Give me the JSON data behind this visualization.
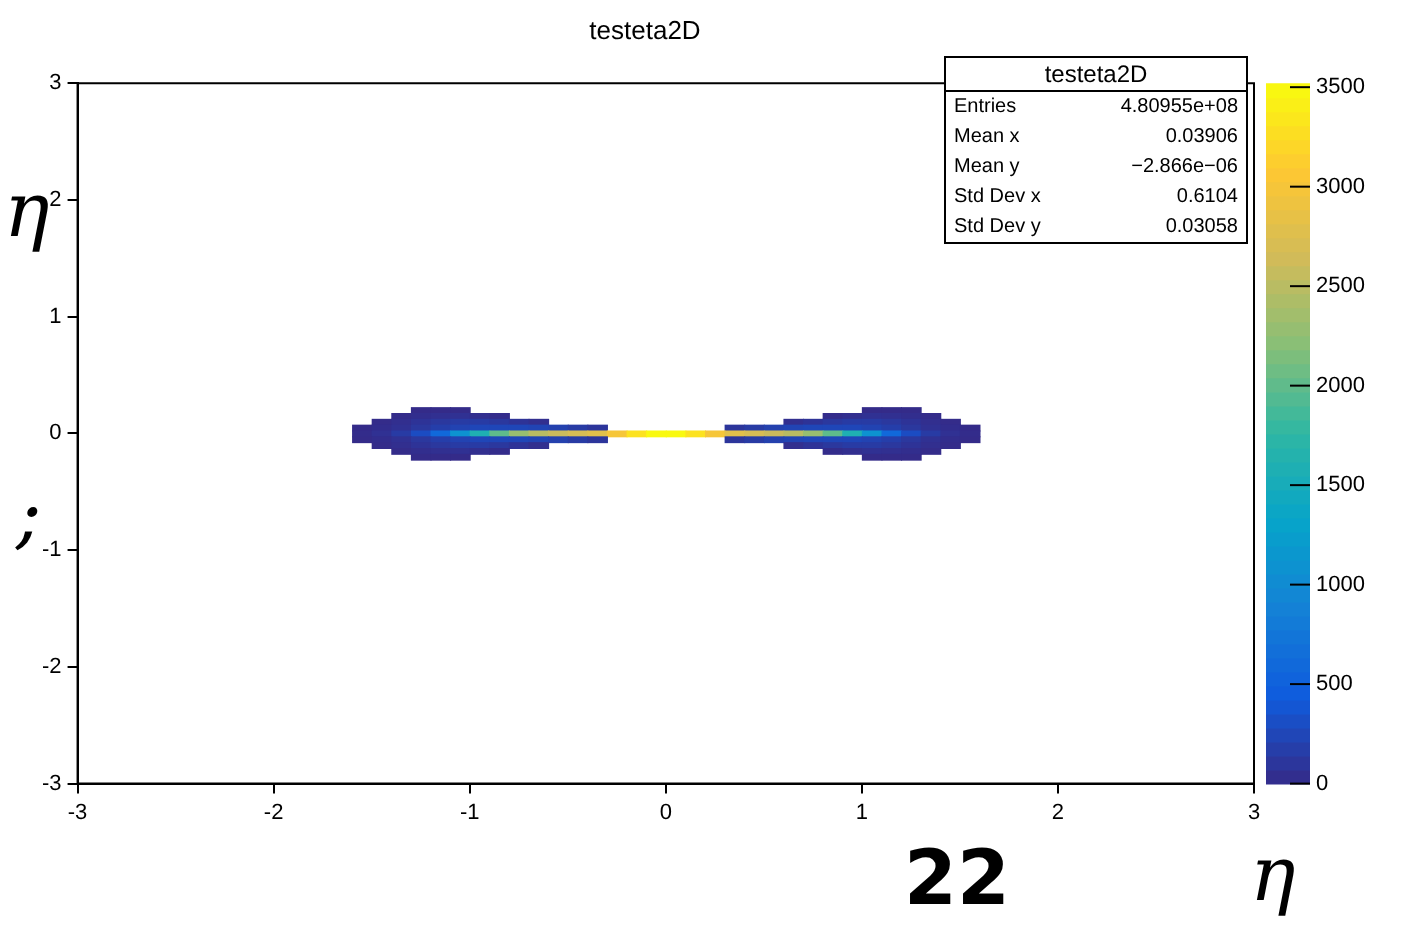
{
  "chart_data": {
    "type": "heatmap",
    "title": "testeta2D",
    "x": [
      -1.55,
      -1.45,
      -1.35,
      -1.25,
      -1.15,
      -1.05,
      -0.95,
      -0.85,
      -0.75,
      -0.65,
      -0.55,
      -0.45,
      -0.35,
      -0.25,
      -0.15,
      -0.05,
      0.05,
      0.15,
      0.25,
      0.35,
      0.45,
      0.55,
      0.65,
      0.75,
      0.85,
      0.95,
      1.05,
      1.15,
      1.25,
      1.35,
      1.45,
      1.55
    ],
    "y": [
      0.2,
      0.15,
      0.1,
      0.05,
      0,
      -0.05,
      -0.1,
      -0.15,
      -0.2
    ],
    "cells": [
      [
        null,
        null,
        null,
        8,
        10,
        8,
        null,
        null,
        null,
        null,
        null,
        null,
        null,
        null,
        null,
        null,
        null,
        null,
        null,
        null,
        null,
        null,
        null,
        null,
        null,
        null,
        8,
        10,
        8,
        null,
        null,
        null
      ],
      [
        null,
        null,
        15,
        35,
        50,
        60,
        40,
        20,
        null,
        null,
        null,
        null,
        null,
        null,
        null,
        null,
        null,
        null,
        null,
        null,
        null,
        null,
        null,
        null,
        20,
        40,
        60,
        50,
        35,
        15,
        null,
        null
      ],
      [
        null,
        15,
        40,
        80,
        120,
        150,
        150,
        120,
        80,
        40,
        null,
        null,
        null,
        null,
        null,
        null,
        null,
        null,
        null,
        null,
        null,
        null,
        40,
        80,
        120,
        150,
        150,
        120,
        80,
        40,
        15,
        null
      ],
      [
        10,
        30,
        60,
        120,
        180,
        220,
        250,
        250,
        250,
        230,
        200,
        150,
        100,
        null,
        null,
        null,
        null,
        null,
        null,
        100,
        150,
        200,
        230,
        250,
        250,
        250,
        220,
        180,
        120,
        60,
        30,
        10
      ],
      [
        20,
        60,
        150,
        300,
        600,
        1100,
        1600,
        2000,
        2300,
        2500,
        2600,
        2700,
        2800,
        3000,
        3300,
        3500,
        3500,
        3300,
        3000,
        2800,
        2700,
        2600,
        2500,
        2300,
        2000,
        1600,
        1100,
        600,
        300,
        150,
        60,
        20
      ],
      [
        10,
        30,
        60,
        120,
        180,
        220,
        250,
        250,
        250,
        230,
        200,
        150,
        100,
        null,
        null,
        null,
        null,
        null,
        null,
        100,
        150,
        200,
        230,
        250,
        250,
        250,
        220,
        180,
        120,
        60,
        30,
        10
      ],
      [
        null,
        15,
        40,
        80,
        120,
        150,
        150,
        120,
        80,
        40,
        null,
        null,
        null,
        null,
        null,
        null,
        null,
        null,
        null,
        null,
        null,
        null,
        40,
        80,
        120,
        150,
        150,
        120,
        80,
        40,
        15,
        null
      ],
      [
        null,
        null,
        15,
        35,
        50,
        60,
        40,
        20,
        null,
        null,
        null,
        null,
        null,
        null,
        null,
        null,
        null,
        null,
        null,
        null,
        null,
        null,
        null,
        null,
        20,
        40,
        60,
        50,
        35,
        15,
        null,
        null
      ],
      [
        null,
        null,
        null,
        8,
        10,
        8,
        null,
        null,
        null,
        null,
        null,
        null,
        null,
        null,
        null,
        null,
        null,
        null,
        null,
        null,
        null,
        null,
        null,
        null,
        null,
        null,
        8,
        10,
        8,
        null,
        null,
        null
      ]
    ],
    "xlim": [
      -3,
      3
    ],
    "ylim": [
      -3,
      3
    ],
    "xticks": [
      -3,
      -2,
      -1,
      0,
      1,
      2,
      3
    ],
    "yticks": [
      -3,
      -2,
      -1,
      0,
      1,
      2,
      3
    ],
    "clim": [
      0,
      3520
    ],
    "cticks": [
      0,
      500,
      1000,
      1500,
      2000,
      2500,
      3000,
      3500
    ],
    "annotations": [
      "testeta2D",
      "Entries",
      "4.80955e+08",
      "Mean x",
      "0.03906",
      "Mean y",
      "−2.866e−06",
      "Std Dev x",
      "0.6104",
      "Std Dev y",
      "0.03058",
      "η",
      ";",
      "22",
      "η"
    ]
  }
}
